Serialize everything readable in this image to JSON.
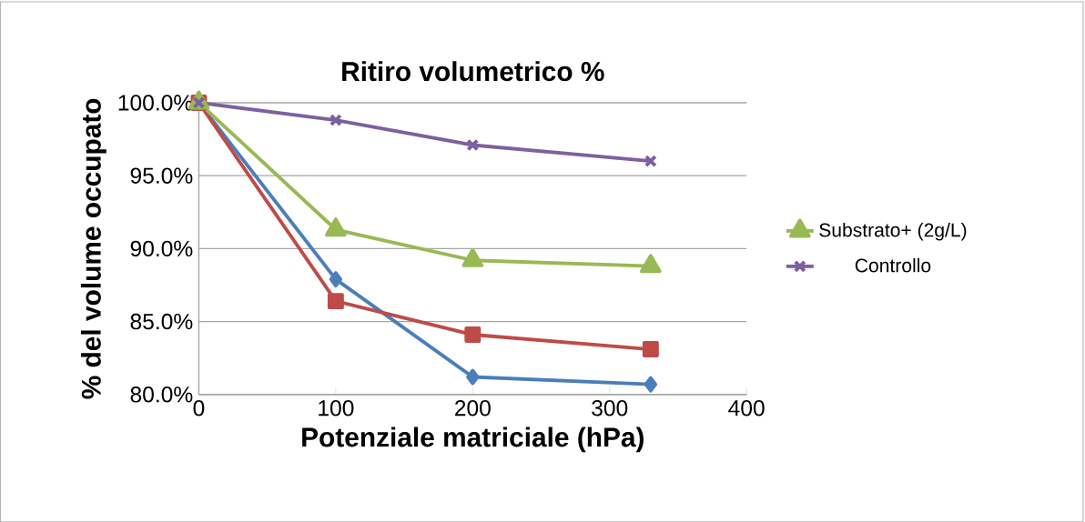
{
  "chart_data": {
    "type": "line",
    "title": "Ritiro volumetrico %",
    "xlabel": "Potenziale matriciale (hPa)",
    "ylabel": "% del volume occupato",
    "series": [
      {
        "color": "#4a7ebb",
        "marker": "diamond",
        "x": [
          0,
          100,
          200,
          330
        ],
        "values": [
          100,
          87.9,
          81.2,
          80.7
        ]
      },
      {
        "color": "#be4b48",
        "marker": "square",
        "x": [
          0,
          100,
          200,
          330
        ],
        "values": [
          100,
          86.4,
          84.1,
          83.1
        ]
      },
      {
        "name": "Substrato+ (2g/L)",
        "color": "#98b954",
        "marker": "triangle",
        "x": [
          0,
          100,
          200,
          330
        ],
        "values": [
          100,
          91.3,
          89.2,
          88.8
        ]
      },
      {
        "name": "Controllo",
        "color": "#7d60a0",
        "marker": "cross",
        "x": [
          0,
          100,
          200,
          330
        ],
        "values": [
          100,
          98.8,
          97.1,
          96.0
        ]
      }
    ],
    "xlim": [
      0,
      400
    ],
    "xticks": [
      0,
      100,
      200,
      300,
      400
    ],
    "ylim": [
      80,
      100
    ],
    "yticks": [
      {
        "value": 80,
        "label": "80.0%"
      },
      {
        "value": 85,
        "label": "85.0%"
      },
      {
        "value": 90,
        "label": "90.0%"
      },
      {
        "value": 95,
        "label": "95.0%"
      },
      {
        "value": 100,
        "label": "100.0%"
      }
    ],
    "grid": "y",
    "legend": "right",
    "line_style": "solid"
  }
}
